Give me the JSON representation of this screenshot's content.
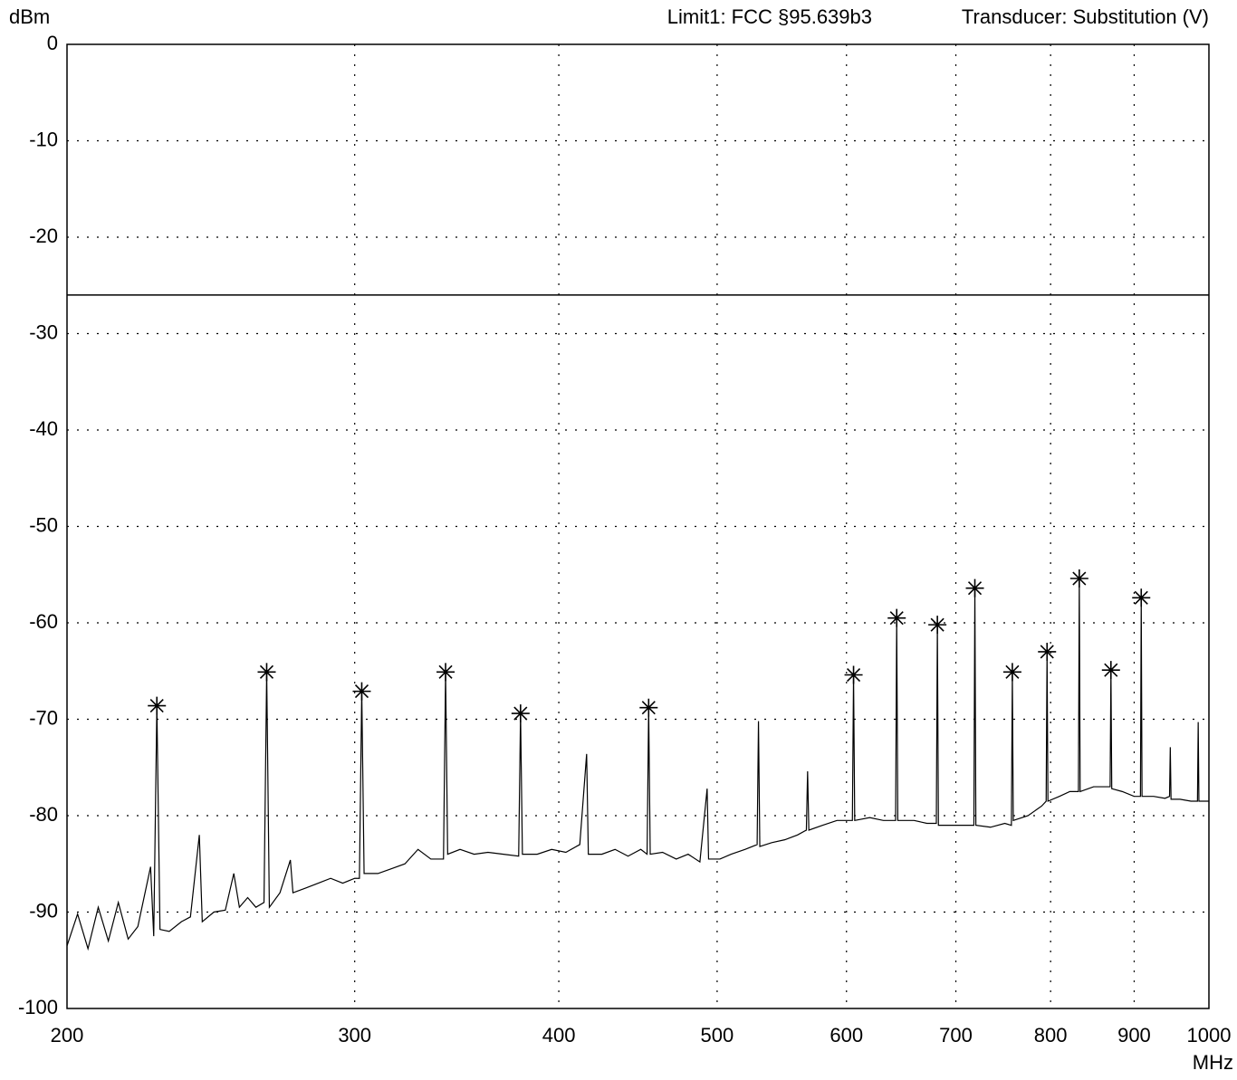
{
  "chart_data": {
    "type": "line",
    "y_label": "dBm",
    "x_label": "MHz",
    "limit_label": "Limit1: FCC §95.639b3",
    "transducer_label": "Transducer: Substitution (V)",
    "xscale": "log",
    "grid": true,
    "color": "#000000",
    "xlim": [
      200,
      1000
    ],
    "xticks": [
      200,
      300,
      400,
      500,
      600,
      700,
      800,
      900,
      1000
    ],
    "ylim": [
      -100,
      0
    ],
    "yticks": [
      0,
      -10,
      -20,
      -30,
      -40,
      -50,
      -60,
      -70,
      -80,
      -90,
      -100
    ],
    "limit": -26,
    "x": [
      200,
      203,
      206,
      209,
      212,
      215,
      218,
      221,
      225,
      226,
      227,
      228,
      231,
      235,
      238,
      241,
      242,
      246,
      250,
      253,
      255,
      258,
      261,
      264,
      265,
      266,
      270,
      274,
      275,
      280,
      285,
      290,
      295,
      300,
      302,
      303,
      304,
      310,
      316,
      322,
      328,
      334,
      340,
      341,
      342,
      348,
      355,
      362,
      370,
      378,
      379,
      380,
      388,
      396,
      404,
      412,
      416,
      417,
      425,
      433,
      441,
      449,
      453,
      454,
      455,
      463,
      472,
      480,
      488,
      493,
      494,
      502,
      510,
      520,
      529,
      530,
      531,
      540,
      550,
      560,
      567,
      568,
      569,
      580,
      592,
      605,
      606,
      607,
      620,
      632,
      643,
      644,
      645,
      660,
      672,
      681,
      682,
      683,
      695,
      707,
      718,
      719,
      720,
      735,
      750,
      757,
      758,
      759,
      775,
      790,
      795,
      796,
      797,
      810,
      822,
      832,
      833,
      834,
      850,
      860,
      870,
      871,
      872,
      885,
      900,
      908,
      909,
      910,
      925,
      940,
      946,
      947,
      948,
      960,
      975,
      984,
      985,
      986,
      1000
    ],
    "values": [
      -93.5,
      -90.2,
      -93.8,
      -89.5,
      -93.0,
      -89.0,
      -92.8,
      -91.5,
      -85.3,
      -92.5,
      -68.6,
      -91.8,
      -92.0,
      -91.0,
      -90.5,
      -82.0,
      -91.0,
      -90.0,
      -89.8,
      -86.0,
      -89.5,
      -88.5,
      -89.5,
      -89.0,
      -65.1,
      -89.5,
      -88.0,
      -84.6,
      -88.0,
      -87.5,
      -87.0,
      -86.5,
      -87.0,
      -86.5,
      -86.5,
      -67.1,
      -86.0,
      -86.0,
      -85.5,
      -85.0,
      -83.5,
      -84.5,
      -84.5,
      -65.1,
      -84.0,
      -83.5,
      -84.0,
      -83.8,
      -84.0,
      -84.2,
      -69.4,
      -84.0,
      -84.0,
      -83.5,
      -83.8,
      -83.0,
      -73.6,
      -84.0,
      -84.0,
      -83.5,
      -84.2,
      -83.5,
      -84.0,
      -68.8,
      -84.0,
      -83.8,
      -84.5,
      -84.0,
      -84.8,
      -77.2,
      -84.5,
      -84.5,
      -84.0,
      -83.5,
      -83.0,
      -70.2,
      -83.2,
      -82.8,
      -82.5,
      -82.0,
      -81.5,
      -75.4,
      -81.5,
      -81.0,
      -80.5,
      -80.5,
      -65.4,
      -80.5,
      -80.2,
      -80.5,
      -80.5,
      -59.5,
      -80.5,
      -80.5,
      -80.8,
      -80.8,
      -60.2,
      -81.0,
      -81.0,
      -81.0,
      -81.0,
      -56.4,
      -81.0,
      -81.2,
      -80.8,
      -81.0,
      -65.1,
      -80.5,
      -80.0,
      -79.0,
      -78.5,
      -63.0,
      -78.5,
      -78.0,
      -77.5,
      -77.5,
      -55.4,
      -77.5,
      -77.0,
      -77.0,
      -77.0,
      -64.9,
      -77.2,
      -77.5,
      -78.0,
      -78.0,
      -57.4,
      -78.0,
      -78.0,
      -78.2,
      -78.0,
      -72.9,
      -78.3,
      -78.3,
      -78.5,
      -78.5,
      -70.3,
      -78.5,
      -78.5
    ],
    "markers": {
      "x": [
        227,
        265,
        303,
        341,
        379,
        454,
        606,
        644,
        682,
        719,
        758,
        796,
        833,
        871,
        909
      ],
      "values": [
        -68.6,
        -65.1,
        -67.1,
        -65.1,
        -69.4,
        -68.8,
        -65.4,
        -59.5,
        -60.2,
        -56.4,
        -65.1,
        -63.0,
        -55.4,
        -64.9,
        -57.4
      ]
    }
  }
}
